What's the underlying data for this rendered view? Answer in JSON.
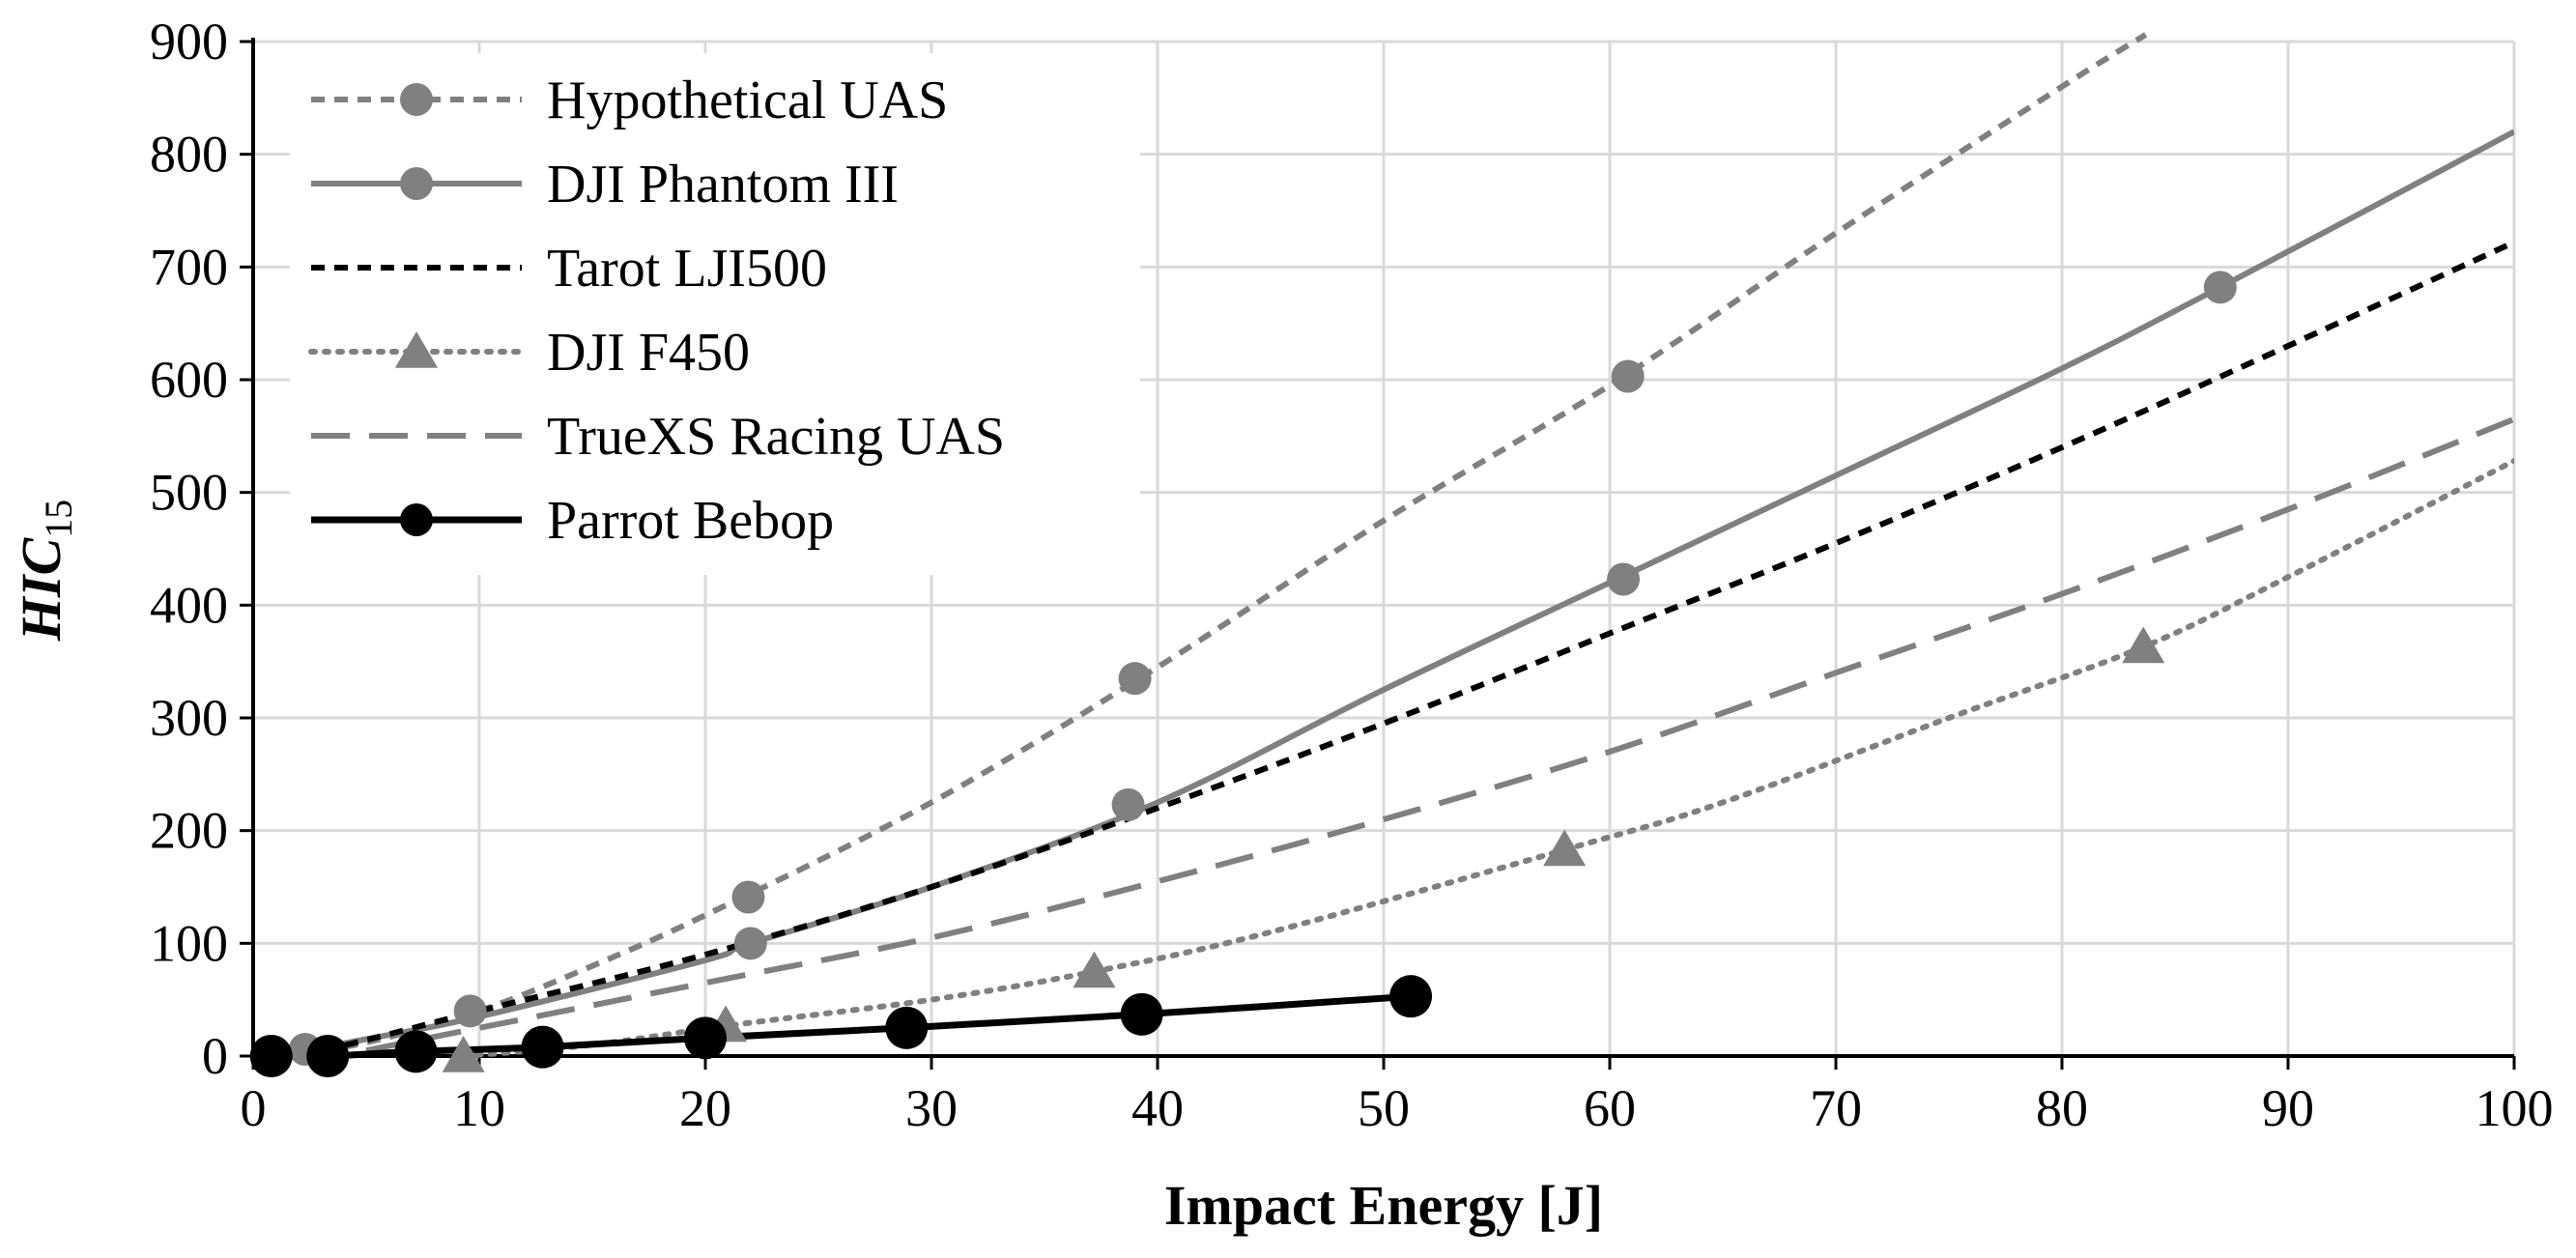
{
  "chart_data": {
    "type": "line",
    "title": "",
    "xlabel": "Impact Energy [J]",
    "ylabel_main": "HIC",
    "ylabel_sub": "15",
    "xlim": [
      0,
      100
    ],
    "ylim": [
      0,
      900
    ],
    "x_ticks": [
      "0",
      "10",
      "20",
      "30",
      "40",
      "50",
      "60",
      "70",
      "80",
      "90",
      "100"
    ],
    "y_ticks": [
      "0",
      "100",
      "200",
      "300",
      "400",
      "500",
      "600",
      "700",
      "800",
      "900"
    ],
    "grid": true,
    "legend_position": "top-left",
    "series": [
      {
        "name": "Hypothetical UAS",
        "color": "#808080",
        "line_style": "short-dash",
        "marker": "circle",
        "curve": [
          [
            2,
            3
          ],
          [
            5,
            12
          ],
          [
            10,
            40
          ],
          [
            15,
            80
          ],
          [
            20,
            125
          ],
          [
            30,
            225
          ],
          [
            40,
            345
          ],
          [
            50,
            475
          ],
          [
            60,
            595
          ],
          [
            70,
            730
          ],
          [
            80,
            860
          ],
          [
            83.7,
            906
          ]
        ],
        "points": [
          [
            2.3,
            6
          ],
          [
            9.6,
            40
          ],
          [
            21.9,
            141
          ],
          [
            39,
            335
          ],
          [
            60.8,
            603
          ]
        ]
      },
      {
        "name": "DJI Phantom III",
        "color": "#808080",
        "line_style": "solid",
        "marker": "circle",
        "curve": [
          [
            1,
            0
          ],
          [
            5,
            15
          ],
          [
            10,
            35
          ],
          [
            20,
            85
          ],
          [
            22,
            100
          ],
          [
            30,
            150
          ],
          [
            40,
            225
          ],
          [
            50,
            325
          ],
          [
            60,
            420
          ],
          [
            70,
            515
          ],
          [
            80,
            610
          ],
          [
            87,
            682
          ],
          [
            100,
            820
          ]
        ],
        "points": [
          [
            22,
            100
          ],
          [
            38.7,
            223
          ],
          [
            60.6,
            423
          ],
          [
            87,
            682
          ]
        ]
      },
      {
        "name": "Tarot LJI500",
        "color": "#000000",
        "line_style": "short-dash",
        "marker": "none",
        "curve": [
          [
            0,
            0
          ],
          [
            3,
            5
          ],
          [
            10,
            40
          ],
          [
            20,
            90
          ],
          [
            30,
            150
          ],
          [
            40,
            220
          ],
          [
            50,
            295
          ],
          [
            60,
            375
          ],
          [
            70,
            455
          ],
          [
            80,
            540
          ],
          [
            90,
            630
          ],
          [
            100,
            722
          ]
        ],
        "points": []
      },
      {
        "name": "DJI F450",
        "color": "#808080",
        "line_style": "dotted",
        "marker": "triangle",
        "curve": [
          [
            9.3,
            0
          ],
          [
            15,
            10
          ],
          [
            21,
            27
          ],
          [
            30,
            50
          ],
          [
            37.2,
            75
          ],
          [
            45,
            110
          ],
          [
            58,
            183
          ],
          [
            65,
            225
          ],
          [
            75,
            300
          ],
          [
            83.6,
            363
          ],
          [
            90,
            425
          ],
          [
            100,
            528
          ]
        ],
        "points": [
          [
            9.3,
            0
          ],
          [
            20.9,
            27
          ],
          [
            37.2,
            75
          ],
          [
            58,
            183
          ],
          [
            83.6,
            363
          ]
        ]
      },
      {
        "name": "TrueXS Racing UAS",
        "color": "#808080",
        "line_style": "long-dash",
        "marker": "none",
        "curve": [
          [
            5,
            5
          ],
          [
            10,
            25
          ],
          [
            20,
            65
          ],
          [
            30,
            105
          ],
          [
            40,
            155
          ],
          [
            50,
            210
          ],
          [
            60,
            270
          ],
          [
            70,
            340
          ],
          [
            80,
            410
          ],
          [
            90,
            485
          ],
          [
            100,
            565
          ]
        ],
        "points": []
      },
      {
        "name": "Parrot Bebop",
        "color": "#000000",
        "line_style": "solid",
        "marker": "circle-large",
        "curve": [
          [
            0.8,
            0
          ],
          [
            3.3,
            0
          ],
          [
            7.2,
            4
          ],
          [
            12.8,
            8
          ],
          [
            20,
            16
          ],
          [
            28.9,
            25
          ],
          [
            39.3,
            37
          ],
          [
            51.2,
            53
          ]
        ],
        "points": [
          [
            0.8,
            0
          ],
          [
            3.3,
            0
          ],
          [
            7.2,
            4
          ],
          [
            12.8,
            8
          ],
          [
            20,
            16
          ],
          [
            28.9,
            25
          ],
          [
            39.3,
            37
          ],
          [
            51.2,
            53
          ]
        ]
      }
    ]
  }
}
